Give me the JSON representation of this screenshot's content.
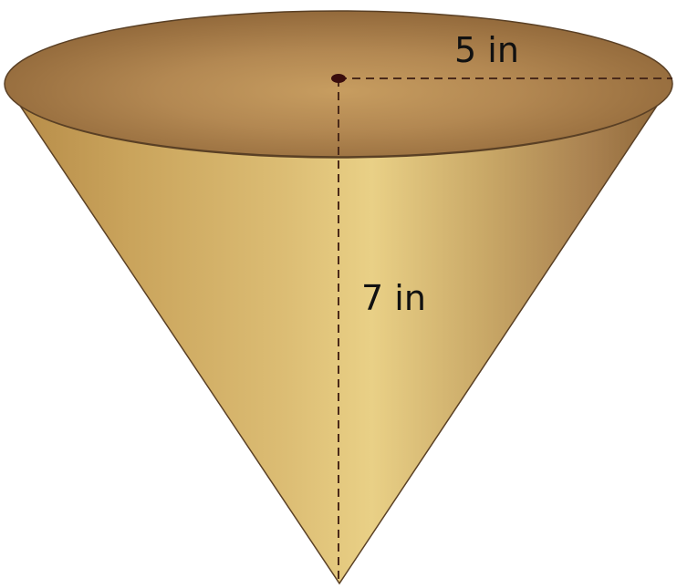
{
  "figure": {
    "radius_label": "5 in",
    "height_label": "7 in"
  },
  "colors": {
    "cone_side_light": "#e9d086",
    "cone_side_mid": "#c9a45c",
    "cone_side_dark": "#9e7543",
    "cone_opening_light": "#c49a5c",
    "cone_opening_dark": "#8a6236",
    "outline": "#5a4025",
    "dimension_line": "#4a2a1a",
    "center_point": "#3a0d0d"
  }
}
